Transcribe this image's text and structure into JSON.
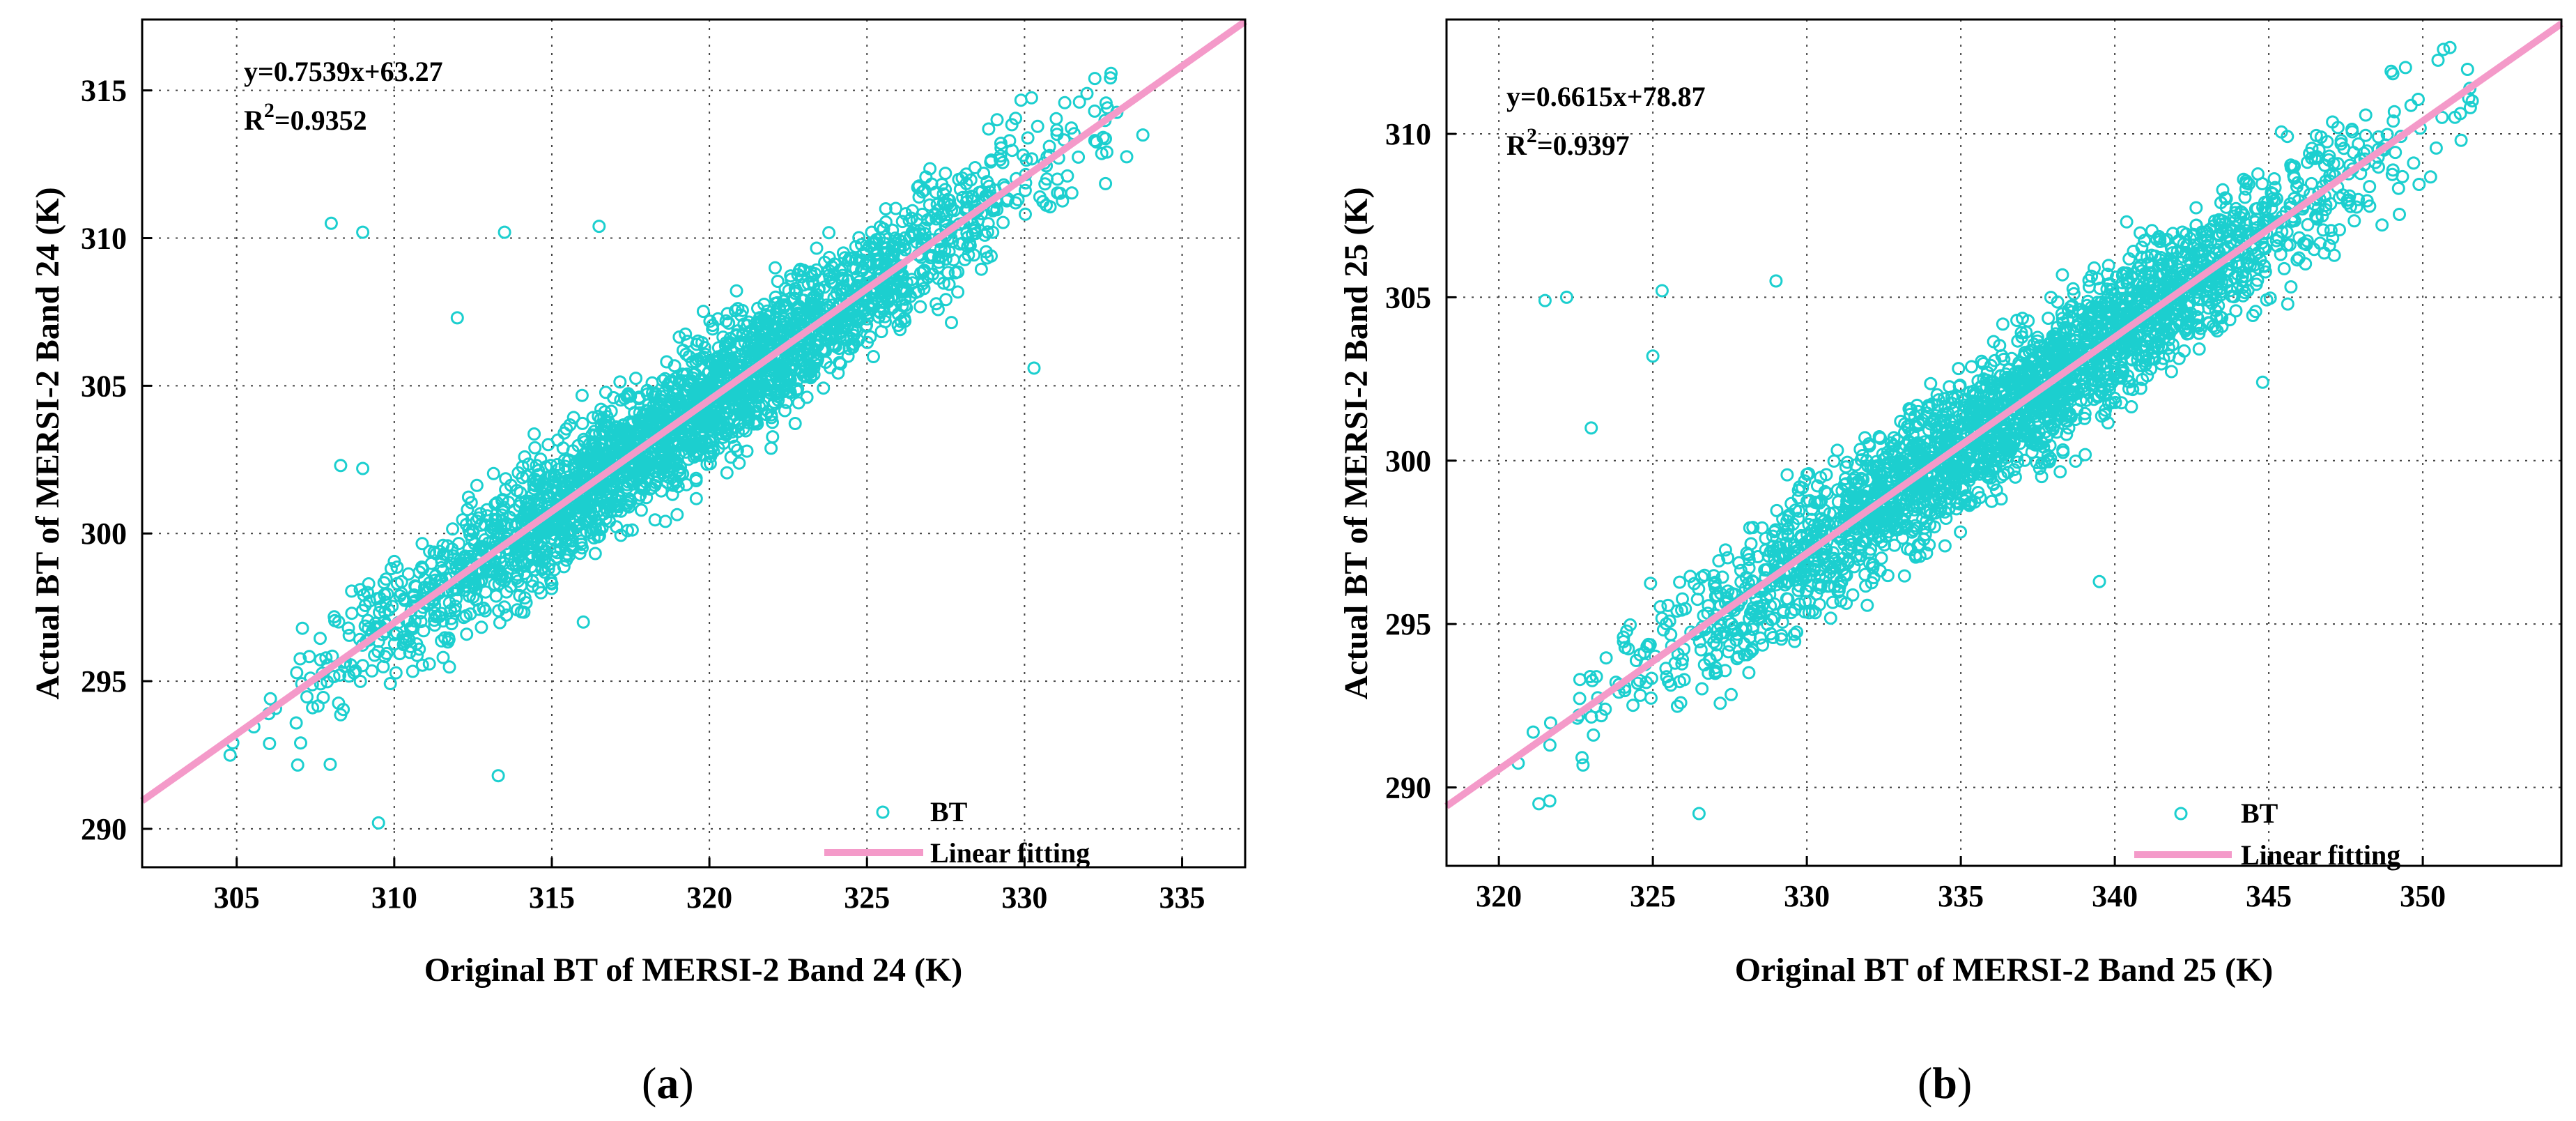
{
  "chart_data": [
    {
      "type": "scatter",
      "panel_label": "a",
      "xlabel": "Original BT of MERSI-2 Band 24 (K)",
      "ylabel": "Actual BT of MERSI-2 Band 24 (K)",
      "xlim": [
        302,
        337
      ],
      "ylim": [
        288.7,
        317.4
      ],
      "xticks": [
        305,
        310,
        315,
        320,
        325,
        330,
        335
      ],
      "yticks": [
        290,
        295,
        300,
        305,
        310,
        315
      ],
      "grid": true,
      "fit": {
        "slope": 0.7539,
        "intercept": 63.27,
        "label_eq": "y=0.7539x+63.27",
        "label_r2_prefix": "R",
        "label_r2_sup": "2",
        "label_r2_value": "=0.9352"
      },
      "scatter": {
        "x_range": [
          303.5,
          335.5
        ],
        "residual_sd": 1.1,
        "point_color": "#1ccfcf",
        "n_points": 2600,
        "outliers": [
          [
            308,
            310.5
          ],
          [
            309,
            310.2
          ],
          [
            313.5,
            310.2
          ],
          [
            316.5,
            310.4
          ],
          [
            312,
            307.3
          ],
          [
            308.3,
            302.3
          ],
          [
            309,
            302.2
          ],
          [
            315,
            298.3
          ],
          [
            316,
            297.0
          ],
          [
            330.3,
            305.6
          ],
          [
            313.3,
            291.8
          ],
          [
            309.5,
            290.2
          ]
        ]
      },
      "series": [
        {
          "name": "BT",
          "kind": "markers",
          "color": "#1ccfcf"
        },
        {
          "name": "Linear fitting",
          "kind": "line",
          "color": "#f49ac9"
        }
      ],
      "legend_position": "bottom-right"
    },
    {
      "type": "scatter",
      "panel_label": "b",
      "xlabel": "Original BT of MERSI-2 Band 25 (K)",
      "ylabel": "Actual BT of MERSI-2 Band 25 (K)",
      "xlim": [
        318.3,
        354.5
      ],
      "ylim": [
        287.6,
        313.5
      ],
      "xticks": [
        320,
        325,
        330,
        335,
        340,
        345,
        350
      ],
      "yticks": [
        290,
        295,
        300,
        305,
        310
      ],
      "grid": true,
      "fit": {
        "slope": 0.6615,
        "intercept": 78.87,
        "label_eq": "y=0.6615x+78.87",
        "label_r2_prefix": "R",
        "label_r2_sup": "2",
        "label_r2_value": "=0.9397"
      },
      "scatter": {
        "x_range": [
          320,
          353
        ],
        "residual_sd": 1.05,
        "point_color": "#1ccfcf",
        "n_points": 2600,
        "outliers": [
          [
            321.5,
            304.9
          ],
          [
            322.2,
            305.0
          ],
          [
            325.3,
            305.2
          ],
          [
            323,
            301
          ],
          [
            325,
            303.2
          ],
          [
            329,
            305.5
          ],
          [
            339.5,
            296.3
          ],
          [
            344.8,
            302.4
          ],
          [
            321.3,
            289.5
          ],
          [
            326.5,
            289.2
          ]
        ]
      },
      "series": [
        {
          "name": "BT",
          "kind": "markers",
          "color": "#1ccfcf"
        },
        {
          "name": "Linear fitting",
          "kind": "line",
          "color": "#f49ac9"
        }
      ],
      "legend_position": "bottom-right"
    }
  ]
}
